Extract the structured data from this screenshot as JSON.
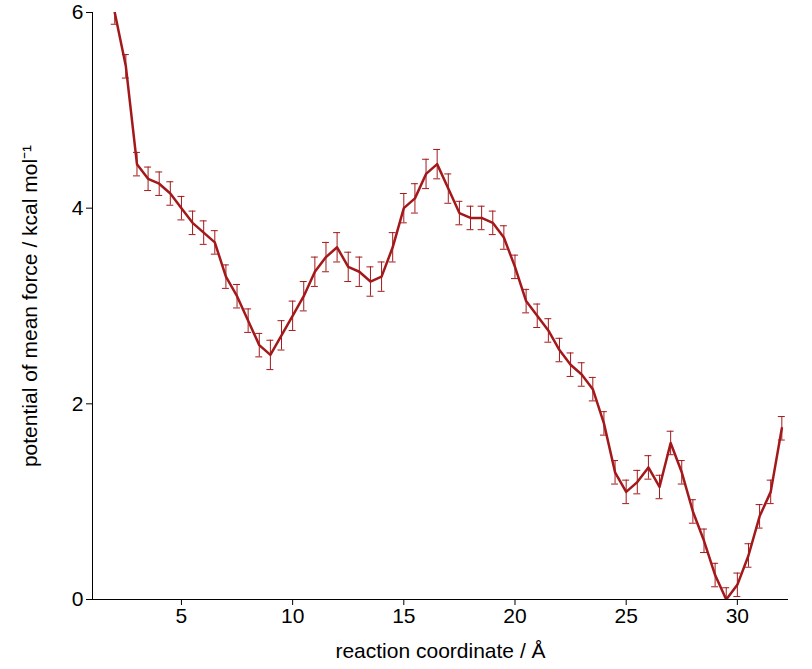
{
  "chart_data": {
    "type": "line",
    "x_label": "reaction coordinate / Å",
    "y_label": "potential of mean force / kcal mol⁻¹",
    "x": [
      2,
      2.5,
      3,
      3.5,
      4,
      4.5,
      5,
      5.5,
      6,
      6.5,
      7,
      7.5,
      8,
      8.5,
      9,
      9.5,
      10,
      10.5,
      11,
      11.5,
      12,
      12.5,
      13,
      13.5,
      14,
      14.5,
      15,
      15.5,
      16,
      16.5,
      17,
      17.5,
      18,
      18.5,
      19,
      19.5,
      20,
      20.5,
      21,
      21.5,
      22,
      22.5,
      23,
      23.5,
      24,
      24.5,
      25,
      25.5,
      26,
      26.5,
      27,
      27.5,
      28,
      28.5,
      29,
      29.5,
      30,
      30.5,
      31,
      31.5,
      32
    ],
    "values": [
      6.0,
      5.45,
      4.45,
      4.3,
      4.25,
      4.15,
      4.0,
      3.85,
      3.75,
      3.65,
      3.3,
      3.1,
      2.85,
      2.6,
      2.5,
      2.7,
      2.9,
      3.1,
      3.35,
      3.5,
      3.6,
      3.4,
      3.35,
      3.25,
      3.3,
      3.6,
      4.0,
      4.1,
      4.35,
      4.45,
      4.2,
      3.95,
      3.9,
      3.9,
      3.85,
      3.7,
      3.4,
      3.05,
      2.9,
      2.75,
      2.55,
      2.4,
      2.3,
      2.15,
      1.8,
      1.3,
      1.1,
      1.2,
      1.35,
      1.15,
      1.6,
      1.3,
      0.9,
      0.6,
      0.25,
      0.0,
      0.15,
      0.45,
      0.85,
      1.1,
      1.75
    ],
    "errors": [
      0.12,
      0.12,
      0.12,
      0.12,
      0.12,
      0.12,
      0.12,
      0.12,
      0.12,
      0.12,
      0.12,
      0.12,
      0.12,
      0.12,
      0.15,
      0.15,
      0.15,
      0.15,
      0.15,
      0.15,
      0.15,
      0.15,
      0.15,
      0.15,
      0.15,
      0.15,
      0.15,
      0.15,
      0.15,
      0.15,
      0.15,
      0.12,
      0.12,
      0.12,
      0.12,
      0.12,
      0.12,
      0.12,
      0.12,
      0.12,
      0.12,
      0.12,
      0.12,
      0.12,
      0.12,
      0.12,
      0.12,
      0.12,
      0.12,
      0.12,
      0.12,
      0.12,
      0.12,
      0.12,
      0.12,
      0.12,
      0.12,
      0.12,
      0.12,
      0.12,
      0.12
    ],
    "color": "#a3191b",
    "xlim": [
      1,
      32.3
    ],
    "ylim": [
      0,
      6
    ],
    "xticks": [
      5,
      10,
      15,
      20,
      25,
      30
    ],
    "yticks": [
      0,
      2,
      4,
      6
    ],
    "grid": false
  }
}
